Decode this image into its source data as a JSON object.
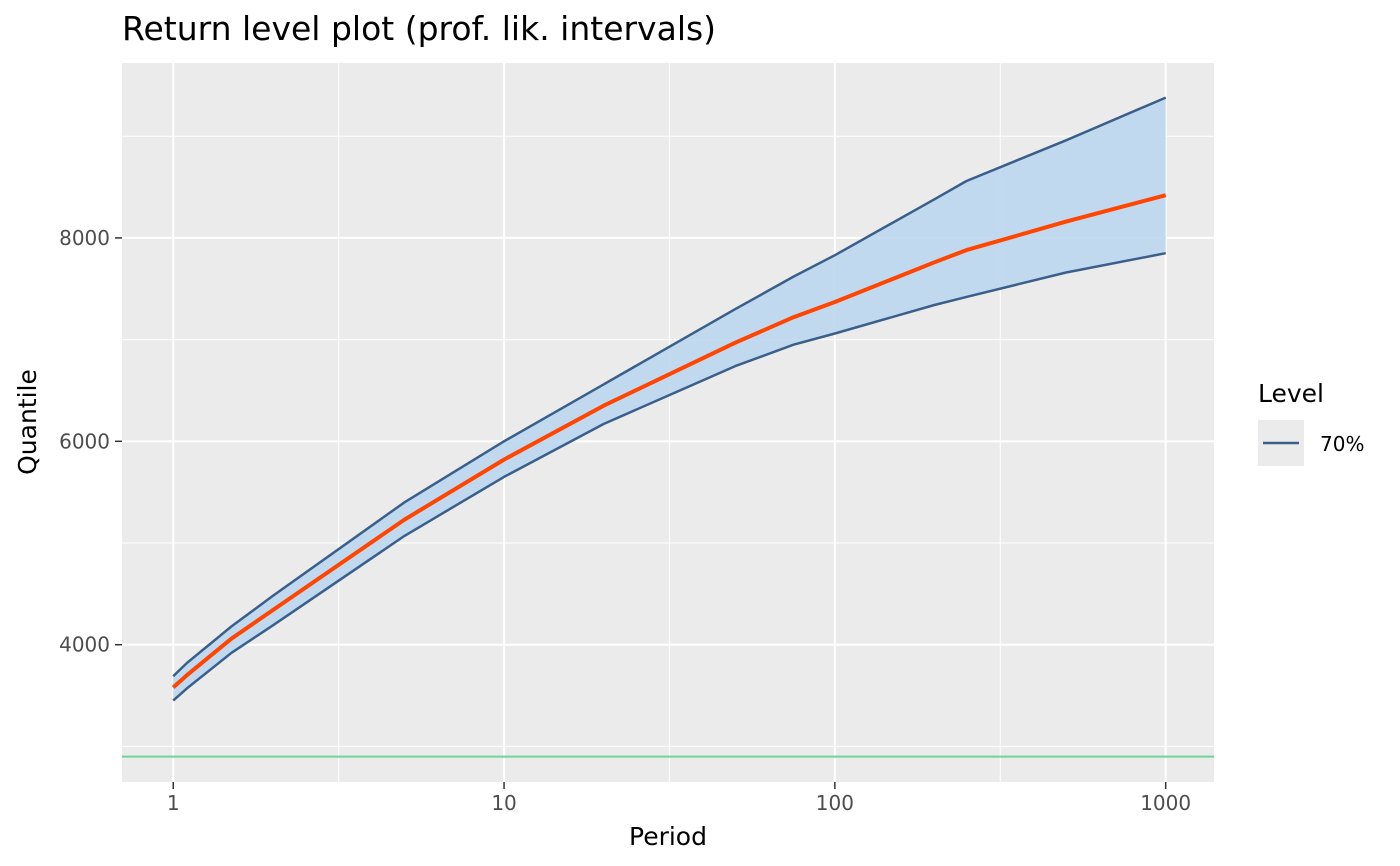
{
  "chart_data": {
    "type": "line",
    "title": "Return level plot (prof. lik. intervals)",
    "xlabel": "Period",
    "ylabel": "Quantile",
    "x_scale": "log10",
    "xlim": [
      0.7,
      1400
    ],
    "ylim": [
      2650,
      9720
    ],
    "x_ticks": [
      1,
      10,
      100,
      1000
    ],
    "x_tick_labels": [
      "1",
      "10",
      "100",
      "1000"
    ],
    "y_ticks": [
      4000,
      6000,
      8000
    ],
    "y_tick_labels": [
      "4000",
      "6000",
      "8000"
    ],
    "grid": true,
    "legend": {
      "title": "Level",
      "position": "right",
      "entries": [
        "70%"
      ]
    },
    "x": [
      1,
      1.1,
      1.5,
      2,
      5,
      10,
      20,
      50,
      75,
      100,
      200,
      250,
      500,
      1000
    ],
    "series": [
      {
        "name": "70%",
        "role": "upper",
        "color": "#3a5f8a",
        "values": [
          3690,
          3820,
          4180,
          4480,
          5400,
          6000,
          6560,
          7300,
          7620,
          7830,
          8380,
          8560,
          8960,
          9380
        ]
      },
      {
        "role": "estimate",
        "color": "#ff4500",
        "values": [
          3580,
          3700,
          4060,
          4340,
          5230,
          5820,
          6350,
          6970,
          7220,
          7370,
          7760,
          7880,
          8160,
          8420
        ]
      },
      {
        "role": "lower",
        "color": "#3a5f8a",
        "values": [
          3450,
          3570,
          3920,
          4190,
          5070,
          5650,
          6170,
          6740,
          6950,
          7060,
          7340,
          7420,
          7660,
          7850
        ]
      }
    ],
    "band": {
      "name": "70%",
      "fill": "#bdd7ee"
    },
    "reference_line": {
      "y": 2900,
      "color": "#6fd39a"
    }
  }
}
